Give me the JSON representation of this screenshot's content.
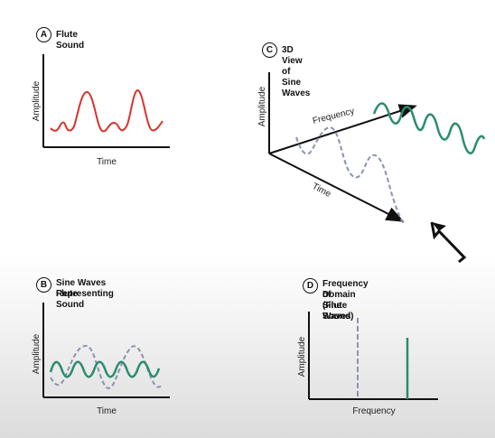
{
  "panels": {
    "a": {
      "badge": "A",
      "title": "Flute Sound",
      "ylabel": "Amplitude",
      "xlabel": "Time"
    },
    "b": {
      "badge": "B",
      "title_line1": "Sine Waves Representing",
      "title_line2": "Flute Sound",
      "ylabel": "Amplitude",
      "xlabel": "Time"
    },
    "c": {
      "badge": "C",
      "title": "3D View of Sine Waves",
      "ylabel": "Amplitude",
      "freq_label": "Frequency",
      "time_label": "Time"
    },
    "d": {
      "badge": "D",
      "title_line1": "Frequency Domain",
      "title_line2": "of Sine Waves",
      "title_line3": "(Flute Sound)",
      "ylabel": "Amplitude",
      "xlabel": "Frequency"
    }
  },
  "colors": {
    "flute_wave": "#d9322c",
    "green_wave": "#2a8c6e",
    "dashed_wave": "#8a93b0",
    "axis": "#111111"
  },
  "icons": {
    "cursor": "arrow-cursor-icon"
  }
}
